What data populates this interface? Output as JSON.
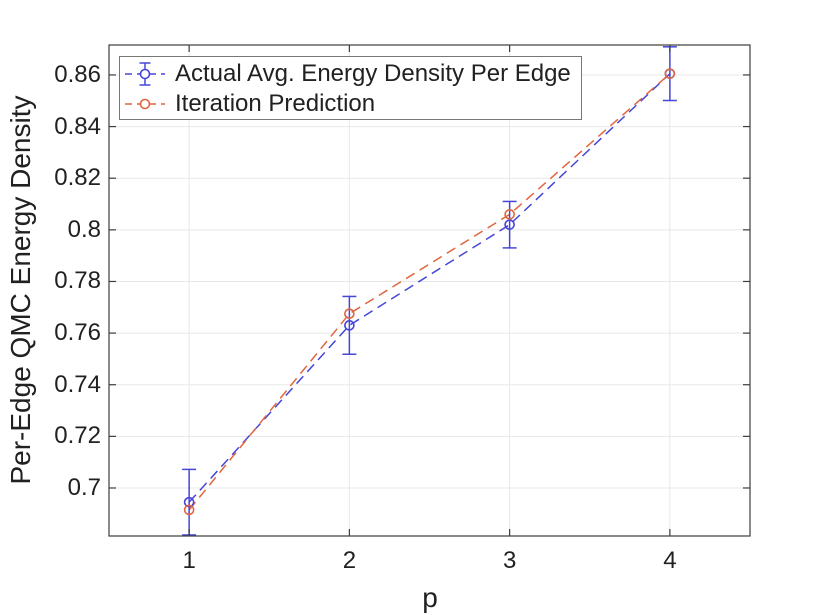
{
  "figure": {
    "xlabel": "p",
    "ylabel": "Per-Edge QMC Energy Density"
  },
  "chart_data": {
    "type": "line",
    "title": "",
    "xlabel": "p",
    "ylabel": "Per-Edge QMC Energy Density",
    "x": [
      1,
      2,
      3,
      4
    ],
    "series": [
      {
        "name": "Actual Avg. Energy Density Per Edge",
        "color": "#4646d8",
        "linestyle": "dashed",
        "marker": "circle",
        "has_error_bars": true,
        "values": [
          0.6945,
          0.763,
          0.802,
          0.8605
        ],
        "yerr": [
          0.0127,
          0.0112,
          0.009,
          0.0104
        ]
      },
      {
        "name": "Iteration Prediction",
        "color": "#e0663f",
        "linestyle": "dashed",
        "marker": "circle",
        "has_error_bars": false,
        "values": [
          0.6915,
          0.7675,
          0.806,
          0.8605
        ],
        "yerr": null
      }
    ],
    "xlim": [
      0.5,
      4.5
    ],
    "ylim": [
      0.6814,
      0.8716
    ],
    "xticks": {
      "values": [
        1,
        2,
        3,
        4
      ],
      "labels": [
        "1",
        "2",
        "3",
        "4"
      ]
    },
    "yticks": {
      "values": [
        0.7,
        0.72,
        0.74,
        0.76,
        0.78,
        0.8,
        0.82,
        0.84,
        0.86
      ],
      "labels": [
        "0.7",
        "0.72",
        "0.74",
        "0.76",
        "0.78",
        "0.8",
        "0.82",
        "0.84",
        "0.86"
      ]
    },
    "grid": true,
    "legend_position": "northwest",
    "colors": {
      "grid": "#e8e8e8",
      "axis": "#3d3d3d",
      "background": "#ffffff",
      "text": "#212121"
    }
  }
}
